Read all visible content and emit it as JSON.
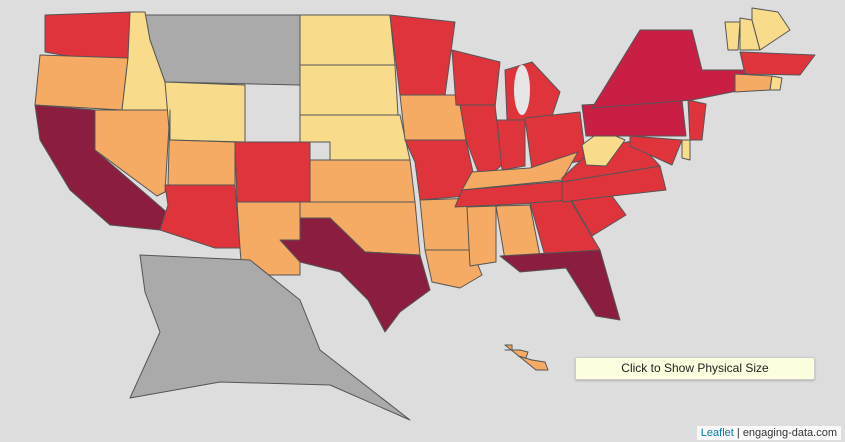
{
  "button": {
    "label": "Click to Show Physical Size"
  },
  "attribution": {
    "leaflet": "Leaflet",
    "separator": " | ",
    "source": "engaging-data.com"
  },
  "palette": {
    "darkest": "#8b1e3f",
    "dark": "#c91f45",
    "red": "#e0343c",
    "orange": "#f5ab63",
    "light": "#f8dc8c",
    "none": "#aaaaaa",
    "water": "#dddddd"
  },
  "states": {
    "WA": "red",
    "OR": "orange",
    "CA": "darkest",
    "ID": "light",
    "NV": "orange",
    "MT": "none",
    "WY": "light",
    "UT": "orange",
    "AZ": "red",
    "CO": "red",
    "NM": "orange",
    "ND": "light",
    "SD": "light",
    "NE": "light",
    "KS": "orange",
    "OK": "orange",
    "TX": "darkest",
    "MN": "red",
    "IA": "orange",
    "MO": "red",
    "AR": "orange",
    "LA": "orange",
    "WI": "red",
    "IL": "red",
    "MI": "red",
    "IN": "red",
    "OH": "red",
    "KY": "orange",
    "TN": "red",
    "MS": "orange",
    "AL": "orange",
    "GA": "red",
    "FL": "darkest",
    "SC": "red",
    "NC": "red",
    "VA": "red",
    "WV": "light",
    "PA": "dark",
    "NY": "dark",
    "VT": "light",
    "NH": "light",
    "ME": "light",
    "MA": "red",
    "CT": "orange",
    "RI": "light",
    "NJ": "red",
    "MD": "red",
    "DE": "light",
    "AK": "none",
    "HI": "orange"
  }
}
